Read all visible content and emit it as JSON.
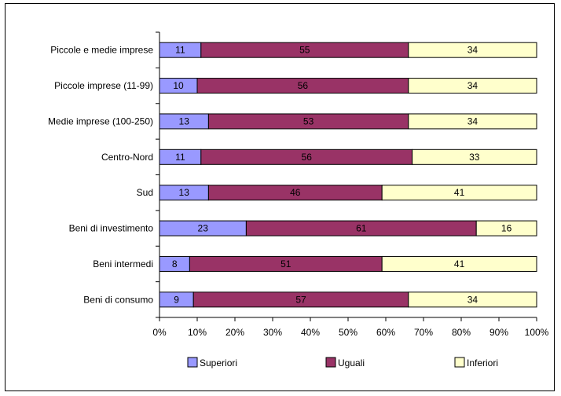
{
  "chart_data": {
    "type": "bar",
    "orientation": "horizontal",
    "stacked": "100%",
    "categories": [
      "Piccole e medie imprese",
      "Piccole imprese (11-99)",
      "Medie imprese (100-250)",
      "Centro-Nord",
      "Sud",
      "Beni di investimento",
      "Beni intermedi",
      "Beni di consumo"
    ],
    "series": [
      {
        "name": "Superiori",
        "color": "#9999ff",
        "values": [
          11,
          10,
          13,
          11,
          13,
          23,
          8,
          9
        ]
      },
      {
        "name": "Uguali",
        "color": "#993366",
        "values": [
          55,
          56,
          53,
          56,
          46,
          61,
          51,
          57
        ]
      },
      {
        "name": "Inferiori",
        "color": "#ffffcc",
        "values": [
          34,
          34,
          34,
          33,
          41,
          16,
          41,
          34
        ]
      }
    ],
    "x_ticks": [
      "0%",
      "10%",
      "20%",
      "30%",
      "40%",
      "50%",
      "60%",
      "70%",
      "80%",
      "90%",
      "100%"
    ],
    "xlim": [
      0,
      100
    ],
    "grid": false,
    "legend_position": "bottom",
    "title": "",
    "xlabel": "",
    "ylabel": ""
  }
}
